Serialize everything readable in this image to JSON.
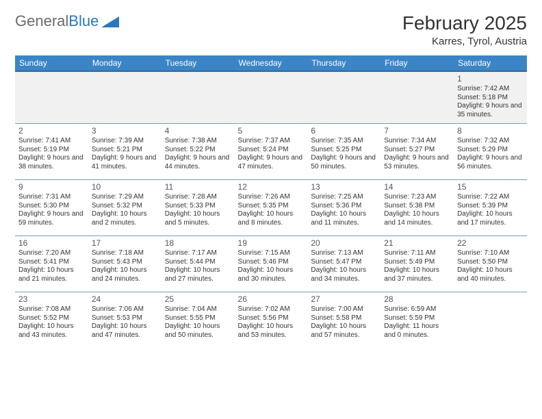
{
  "logo": {
    "text1": "General",
    "text2": "Blue"
  },
  "title": "February 2025",
  "location": "Karres, Tyrol, Austria",
  "colors": {
    "header_bg": "#3b85c6",
    "header_text": "#ffffff",
    "row_divider": "#7a9bbd",
    "week1_bg": "#f1f1f1",
    "body_text": "#333333",
    "logo_gray": "#6b6b6b",
    "logo_blue": "#2b78c2"
  },
  "day_headers": [
    "Sunday",
    "Monday",
    "Tuesday",
    "Wednesday",
    "Thursday",
    "Friday",
    "Saturday"
  ],
  "weeks": [
    [
      null,
      null,
      null,
      null,
      null,
      null,
      {
        "n": "1",
        "sr": "7:42 AM",
        "ss": "5:18 PM",
        "d": "9 hours and 35 minutes."
      }
    ],
    [
      {
        "n": "2",
        "sr": "7:41 AM",
        "ss": "5:19 PM",
        "d": "9 hours and 38 minutes."
      },
      {
        "n": "3",
        "sr": "7:39 AM",
        "ss": "5:21 PM",
        "d": "9 hours and 41 minutes."
      },
      {
        "n": "4",
        "sr": "7:38 AM",
        "ss": "5:22 PM",
        "d": "9 hours and 44 minutes."
      },
      {
        "n": "5",
        "sr": "7:37 AM",
        "ss": "5:24 PM",
        "d": "9 hours and 47 minutes."
      },
      {
        "n": "6",
        "sr": "7:35 AM",
        "ss": "5:25 PM",
        "d": "9 hours and 50 minutes."
      },
      {
        "n": "7",
        "sr": "7:34 AM",
        "ss": "5:27 PM",
        "d": "9 hours and 53 minutes."
      },
      {
        "n": "8",
        "sr": "7:32 AM",
        "ss": "5:29 PM",
        "d": "9 hours and 56 minutes."
      }
    ],
    [
      {
        "n": "9",
        "sr": "7:31 AM",
        "ss": "5:30 PM",
        "d": "9 hours and 59 minutes."
      },
      {
        "n": "10",
        "sr": "7:29 AM",
        "ss": "5:32 PM",
        "d": "10 hours and 2 minutes."
      },
      {
        "n": "11",
        "sr": "7:28 AM",
        "ss": "5:33 PM",
        "d": "10 hours and 5 minutes."
      },
      {
        "n": "12",
        "sr": "7:26 AM",
        "ss": "5:35 PM",
        "d": "10 hours and 8 minutes."
      },
      {
        "n": "13",
        "sr": "7:25 AM",
        "ss": "5:36 PM",
        "d": "10 hours and 11 minutes."
      },
      {
        "n": "14",
        "sr": "7:23 AM",
        "ss": "5:38 PM",
        "d": "10 hours and 14 minutes."
      },
      {
        "n": "15",
        "sr": "7:22 AM",
        "ss": "5:39 PM",
        "d": "10 hours and 17 minutes."
      }
    ],
    [
      {
        "n": "16",
        "sr": "7:20 AM",
        "ss": "5:41 PM",
        "d": "10 hours and 21 minutes."
      },
      {
        "n": "17",
        "sr": "7:18 AM",
        "ss": "5:43 PM",
        "d": "10 hours and 24 minutes."
      },
      {
        "n": "18",
        "sr": "7:17 AM",
        "ss": "5:44 PM",
        "d": "10 hours and 27 minutes."
      },
      {
        "n": "19",
        "sr": "7:15 AM",
        "ss": "5:46 PM",
        "d": "10 hours and 30 minutes."
      },
      {
        "n": "20",
        "sr": "7:13 AM",
        "ss": "5:47 PM",
        "d": "10 hours and 34 minutes."
      },
      {
        "n": "21",
        "sr": "7:11 AM",
        "ss": "5:49 PM",
        "d": "10 hours and 37 minutes."
      },
      {
        "n": "22",
        "sr": "7:10 AM",
        "ss": "5:50 PM",
        "d": "10 hours and 40 minutes."
      }
    ],
    [
      {
        "n": "23",
        "sr": "7:08 AM",
        "ss": "5:52 PM",
        "d": "10 hours and 43 minutes."
      },
      {
        "n": "24",
        "sr": "7:06 AM",
        "ss": "5:53 PM",
        "d": "10 hours and 47 minutes."
      },
      {
        "n": "25",
        "sr": "7:04 AM",
        "ss": "5:55 PM",
        "d": "10 hours and 50 minutes."
      },
      {
        "n": "26",
        "sr": "7:02 AM",
        "ss": "5:56 PM",
        "d": "10 hours and 53 minutes."
      },
      {
        "n": "27",
        "sr": "7:00 AM",
        "ss": "5:58 PM",
        "d": "10 hours and 57 minutes."
      },
      {
        "n": "28",
        "sr": "6:59 AM",
        "ss": "5:59 PM",
        "d": "11 hours and 0 minutes."
      },
      null
    ]
  ],
  "labels": {
    "sunrise": "Sunrise: ",
    "sunset": "Sunset: ",
    "daylight": "Daylight: "
  }
}
